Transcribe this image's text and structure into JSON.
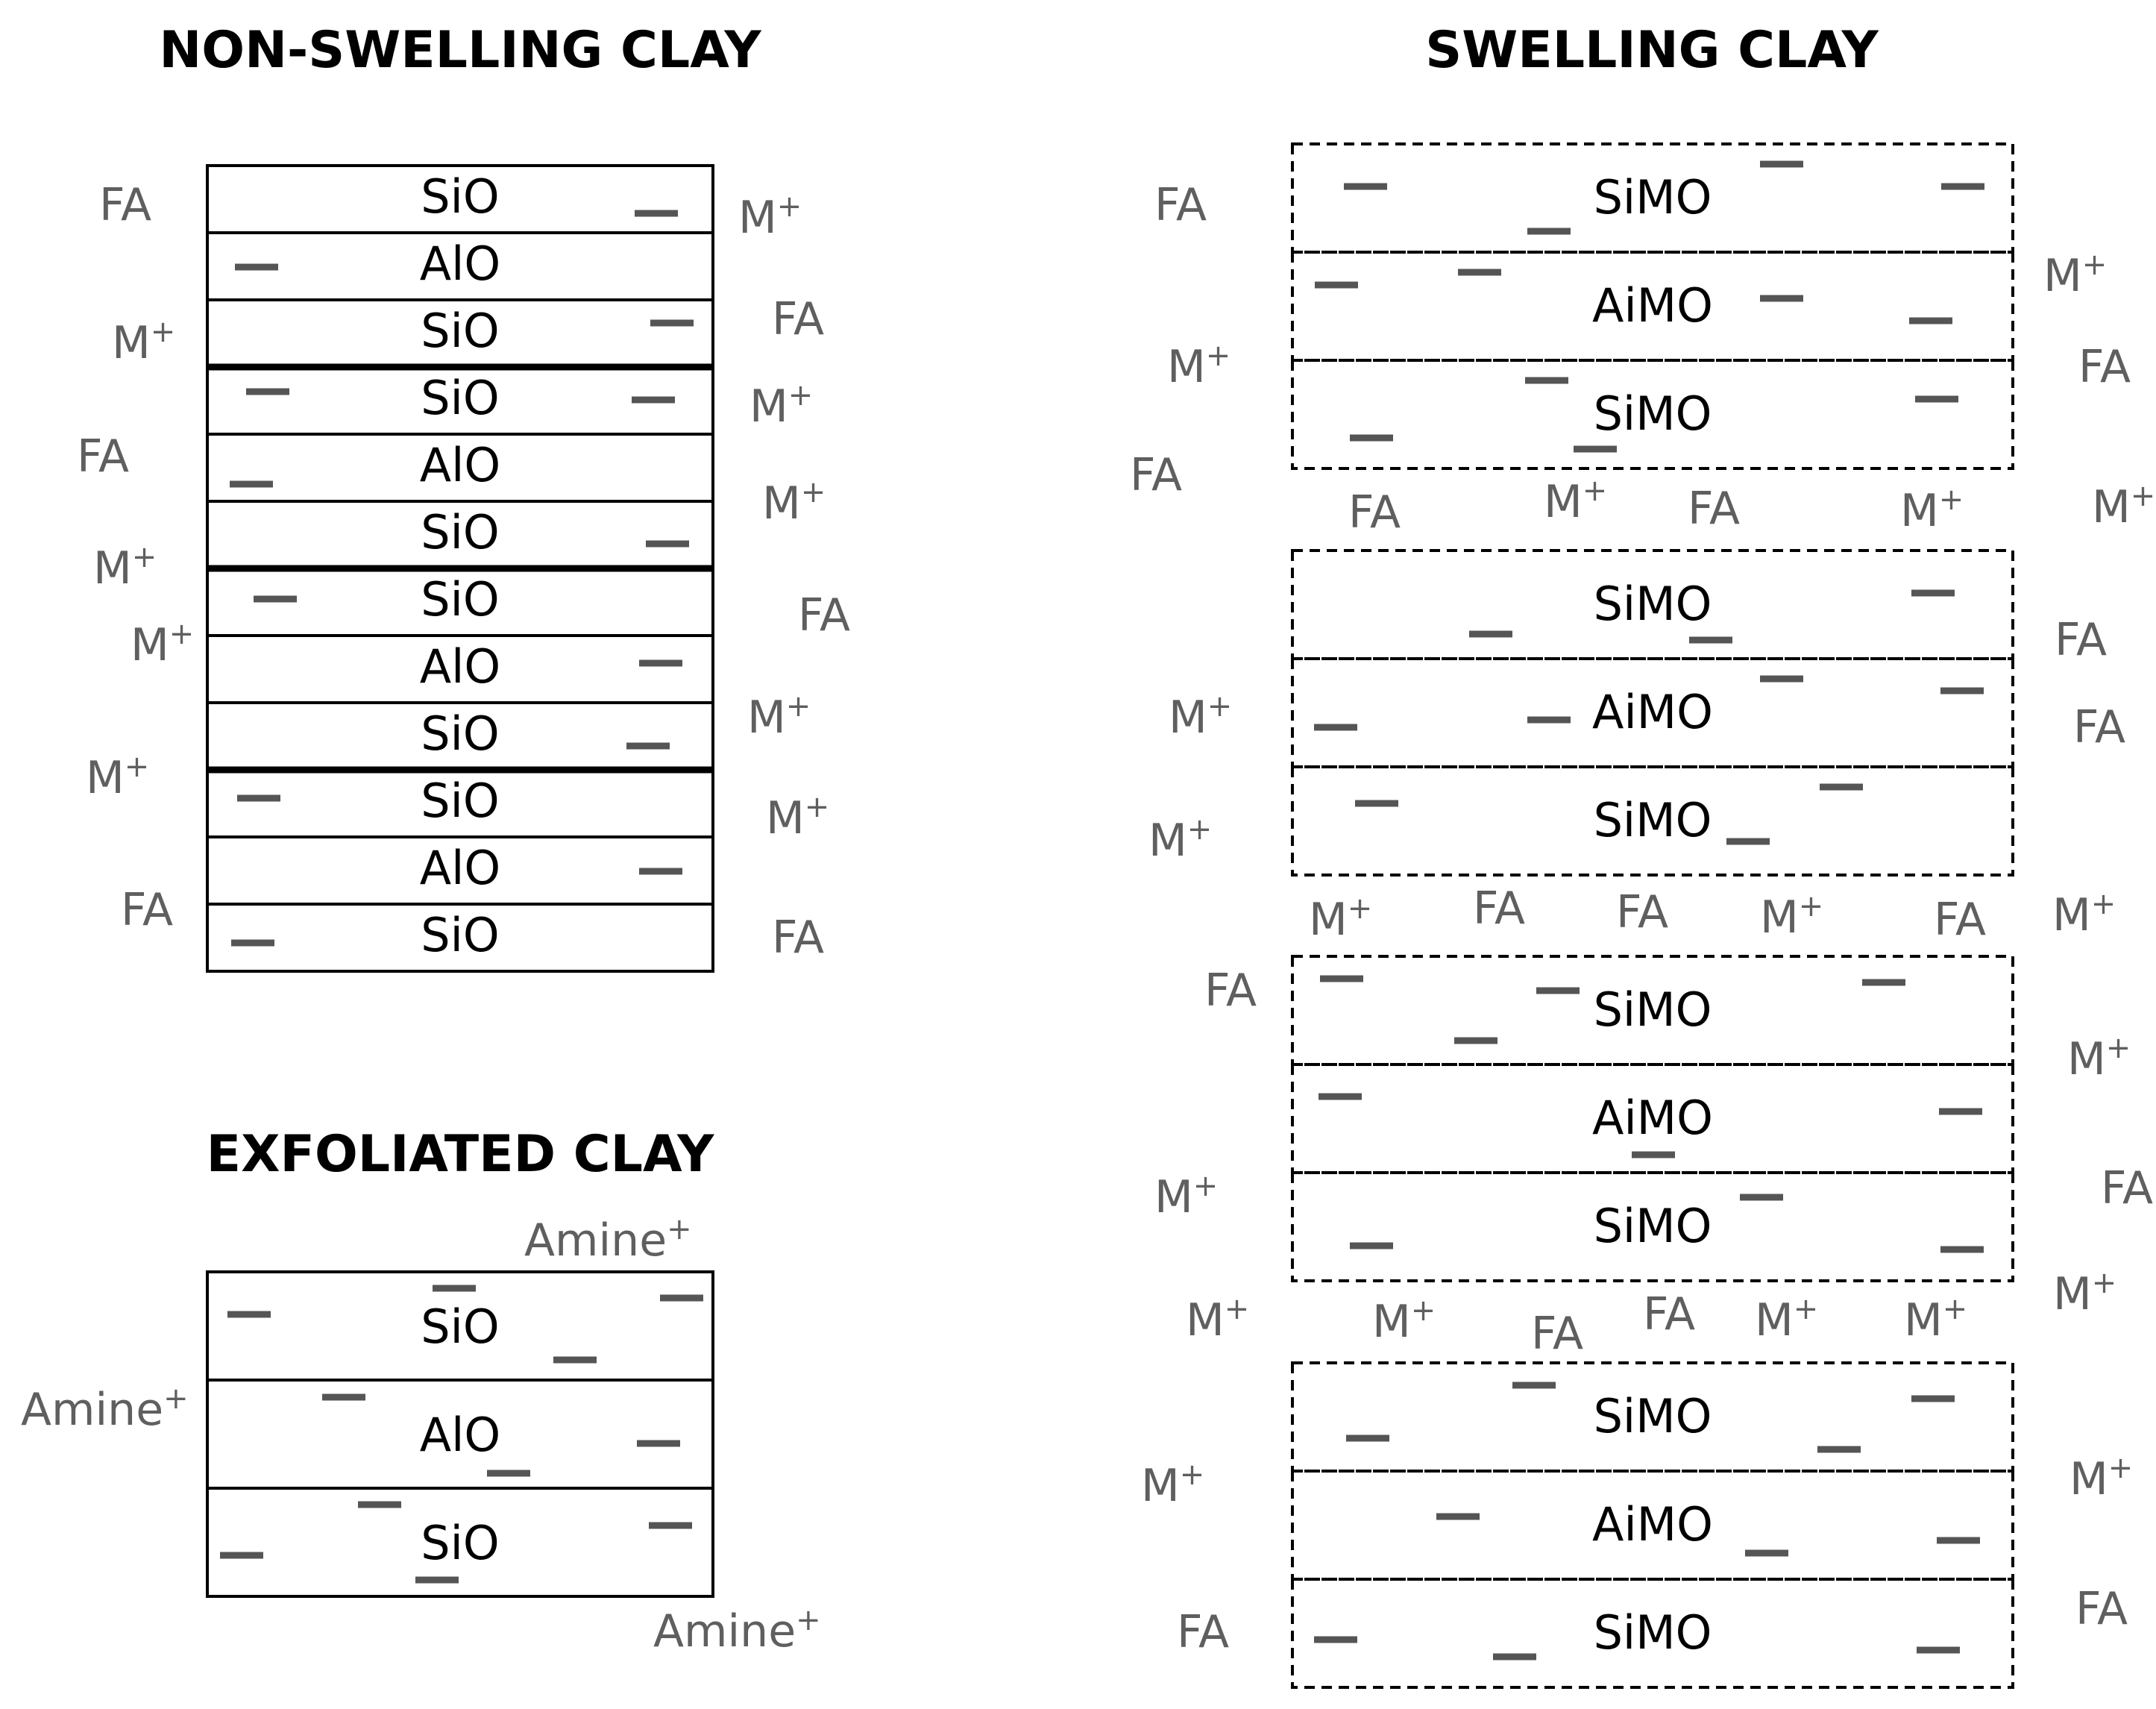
{
  "titles": {
    "non_swelling": "NON-SWELLING CLAY",
    "swelling": "SWELLING CLAY",
    "exfoliated": "EXFOLIATED CLAY"
  },
  "labels": {
    "sio": "SiO",
    "alo": "AlO",
    "simo": "SiMO",
    "aimo": "AiMO",
    "fa": "FA",
    "m": "M",
    "amine": "Amine",
    "plus": "+"
  },
  "colors": {
    "outline": "#000000",
    "charge_mark": "#555555",
    "ion_text": "#5f5f5f"
  },
  "non_swelling_layers": [
    "SiO",
    "AlO",
    "SiO",
    "SiO",
    "AlO",
    "SiO",
    "SiO",
    "AlO",
    "SiO",
    "SiO",
    "AlO",
    "SiO"
  ],
  "exfoliated_layers": [
    "SiO",
    "AlO",
    "SiO"
  ],
  "swelling_layers": [
    "SiMO",
    "AiMO",
    "SiMO",
    "SiMO",
    "AiMO",
    "SiMO",
    "SiMO",
    "AiMO",
    "SiMO",
    "SiMO",
    "AiMO",
    "SiMO"
  ]
}
